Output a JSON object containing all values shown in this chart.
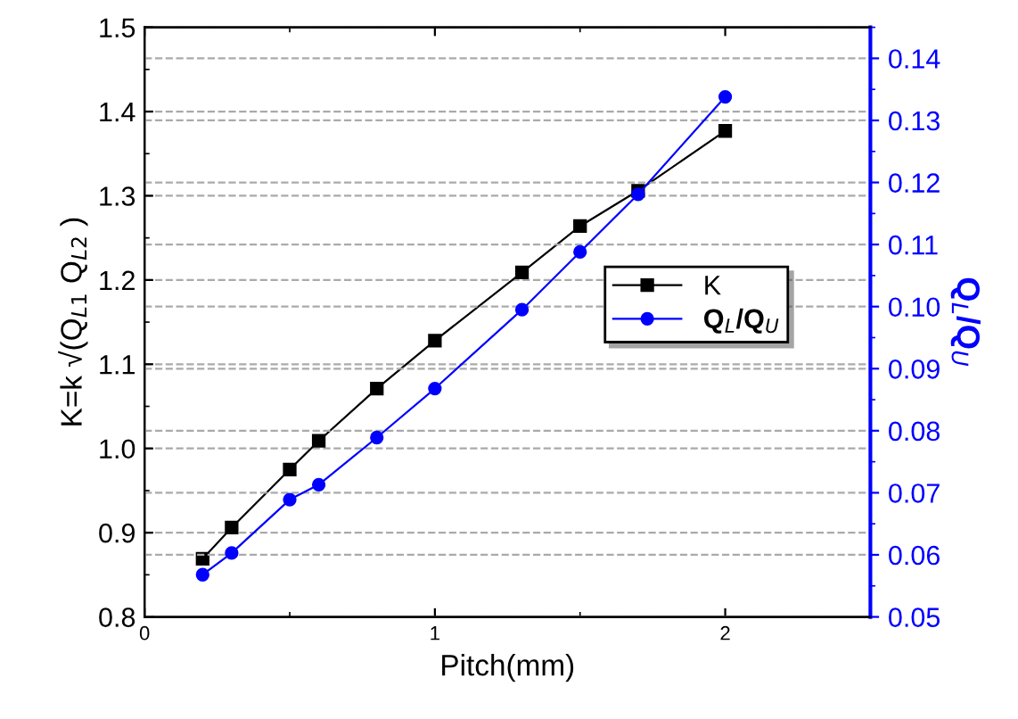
{
  "chart_data": {
    "type": "line",
    "xlabel": "Pitch(mm)",
    "ylabel": "K=k √(Q$_{L1}$ Q$_{L2}$ )",
    "y2label": "Q$_{L}$/Q$_{U}$",
    "x": [
      0.2,
      0.3,
      0.5,
      0.6,
      0.8,
      1.0,
      1.3,
      1.5,
      1.7,
      2.0
    ],
    "series": [
      {
        "name": "K",
        "color": "#000000",
        "marker": "square",
        "values": [
          0.869,
          0.906,
          0.975,
          1.009,
          1.071,
          1.128,
          1.209,
          1.264,
          1.306,
          1.377
        ]
      },
      {
        "name": "Q$_{L}$/Q$_{U}$",
        "color": "#0000ff",
        "marker": "circle",
        "axis": "y2",
        "values": [
          0.0568,
          0.0603,
          0.0689,
          0.0713,
          0.0789,
          0.0868,
          0.0995,
          0.1088,
          0.1181,
          0.1338
        ]
      }
    ],
    "xlim": [
      0,
      2.5
    ],
    "xticks": [
      0,
      1,
      2
    ],
    "ylim": [
      0.8,
      1.5
    ],
    "yticks": [
      0.8,
      0.9,
      {
        "value": 1,
        "label": "1.0"
      },
      1.1,
      1.2,
      1.3,
      1.4,
      1.5
    ],
    "y2lim": [
      0.05,
      0.145
    ],
    "y2ticks": [
      0.05,
      0.06,
      0.07,
      0.08,
      0.09,
      {
        "value": 0.1,
        "label": "0.10"
      },
      0.11,
      0.12,
      0.13,
      0.14
    ],
    "grid": "y",
    "legend": "center right",
    "line_style": "solid"
  }
}
